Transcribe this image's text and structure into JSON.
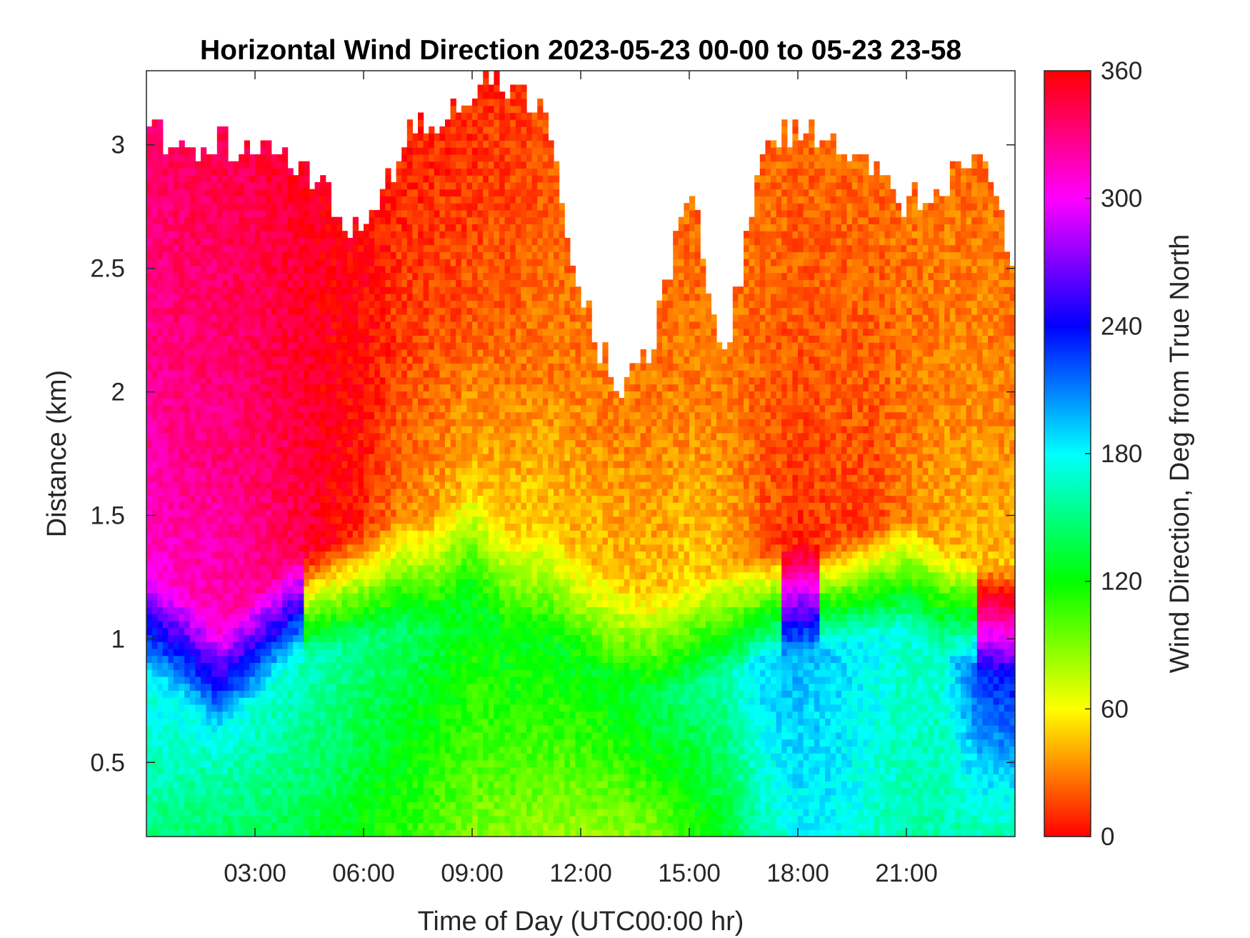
{
  "chart_data": {
    "type": "heatmap",
    "title": "Horizontal Wind Direction 2023-05-23 00-00 to 05-23 23-58",
    "xlabel": "Time of Day (UTC00:00 hr)",
    "ylabel": "Distance (km)",
    "xlim": [
      0,
      24
    ],
    "ylim": [
      0.2,
      3.3
    ],
    "x_ticks": [
      3,
      6,
      9,
      12,
      15,
      18,
      21
    ],
    "x_tick_labels": [
      "03:00",
      "06:00",
      "09:00",
      "12:00",
      "15:00",
      "18:00",
      "21:00"
    ],
    "y_ticks": [
      0.5,
      1,
      1.5,
      2,
      2.5,
      3
    ],
    "y_tick_labels": [
      "0.5",
      "1",
      "1.5",
      "2",
      "2.5",
      "3"
    ],
    "colorbar": {
      "label": "Wind Direction, Deg from True North",
      "lim": [
        0,
        360
      ],
      "ticks": [
        0,
        60,
        120,
        180,
        240,
        300,
        360
      ],
      "tick_labels": [
        "0",
        "60",
        "120",
        "180",
        "240",
        "300",
        "360"
      ],
      "colormap": "hsv"
    },
    "x_hours": [
      0,
      1,
      2,
      3,
      4,
      5,
      6,
      7,
      8,
      9,
      10,
      11,
      12,
      13,
      14,
      15,
      16,
      17,
      18,
      19,
      20,
      21,
      22,
      23,
      24
    ],
    "data_top_km": [
      3.05,
      3.0,
      3.0,
      3.0,
      2.95,
      2.8,
      2.6,
      3.0,
      3.1,
      3.2,
      3.25,
      3.15,
      2.4,
      2.0,
      2.2,
      2.85,
      2.1,
      3.0,
      3.05,
      3.05,
      2.95,
      2.75,
      2.85,
      2.95,
      2.5
    ],
    "wind_direction_layers": [
      {
        "name": "upper",
        "description_deg_profile": [
          335,
          340,
          340,
          345,
          350,
          355,
          355,
          5,
          5,
          5,
          10,
          15,
          20,
          20,
          20,
          20,
          20,
          25,
          25,
          25,
          25,
          25,
          25,
          25,
          20
        ]
      },
      {
        "name": "mid",
        "description_deg_profile": [
          310,
          315,
          315,
          325,
          340,
          355,
          10,
          30,
          40,
          45,
          50,
          50,
          45,
          45,
          45,
          50,
          45,
          20,
          10,
          15,
          15,
          30,
          40,
          45,
          45
        ]
      },
      {
        "name": "lower",
        "description_deg_profile": [
          180,
          180,
          175,
          175,
          170,
          160,
          150,
          145,
          135,
          125,
          125,
          125,
          125,
          130,
          140,
          150,
          160,
          190,
          200,
          190,
          180,
          170,
          170,
          230,
          240
        ]
      },
      {
        "name": "surface",
        "description_deg_profile": [
          150,
          145,
          140,
          140,
          135,
          130,
          120,
          110,
          100,
          90,
          90,
          85,
          85,
          85,
          90,
          110,
          130,
          160,
          180,
          180,
          170,
          160,
          160,
          160,
          160
        ]
      }
    ],
    "boundary_height_km": [
      1.2,
      1.1,
      0.95,
      1.1,
      1.25,
      1.3,
      1.35,
      1.4,
      1.4,
      1.55,
      1.35,
      1.35,
      1.25,
      1.15,
      1.1,
      1.15,
      1.2,
      1.25,
      1.3,
      1.3,
      1.35,
      1.4,
      1.3,
      1.2,
      1.2
    ],
    "grid": false
  }
}
